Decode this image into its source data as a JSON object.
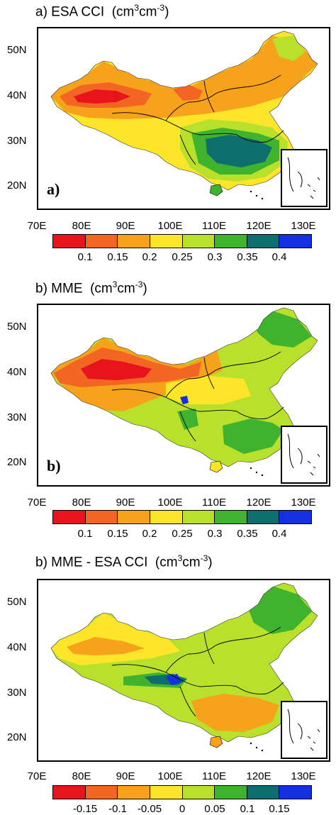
{
  "panels": [
    {
      "title_text": "a) ESA CCI",
      "unit_prefix": "(cm",
      "unit_mid": "cm",
      "unit_sup1": "3",
      "unit_sup2": "-3",
      "unit_suffix": ")",
      "panel_letter": "a)",
      "colorbar_labels": [
        "0.1",
        "0.15",
        "0.2",
        "0.25",
        "0.3",
        "0.35",
        "0.4"
      ],
      "map_style": "esa"
    },
    {
      "title_text": "b) MME",
      "unit_prefix": "(cm",
      "unit_mid": "cm",
      "unit_sup1": "3",
      "unit_sup2": "-3",
      "unit_suffix": ")",
      "panel_letter": "b)",
      "colorbar_labels": [
        "0.1",
        "0.15",
        "0.2",
        "0.25",
        "0.3",
        "0.35",
        "0.4"
      ],
      "map_style": "mme"
    },
    {
      "title_text": "b) MME - ESA CCI",
      "unit_prefix": "(cm",
      "unit_mid": "cm",
      "unit_sup1": "3",
      "unit_sup2": "-3",
      "unit_suffix": ")",
      "panel_letter": "",
      "colorbar_labels": [
        "-0.15",
        "-0.1",
        "-0.05",
        "0",
        "0.05",
        "0.1",
        "0.15"
      ],
      "map_style": "diff"
    }
  ],
  "lat_labels": [
    "50N",
    "40N",
    "30N",
    "20N"
  ],
  "lon_labels": [
    "70E",
    "80E",
    "90E",
    "100E",
    "110E",
    "120E",
    "130E"
  ],
  "colorbar_colors": [
    "#e8141c",
    "#f26522",
    "#f7a21b",
    "#fde52a",
    "#b9e12c",
    "#3fb32e",
    "#0e6e6e",
    "#1530e0"
  ],
  "colors": {
    "red": "#e8141c",
    "orange_red": "#f26522",
    "orange": "#f7a21b",
    "yellow": "#fde52a",
    "yellow_green": "#b9e12c",
    "green": "#3fb32e",
    "teal": "#0e6e6e",
    "blue": "#1530e0"
  }
}
